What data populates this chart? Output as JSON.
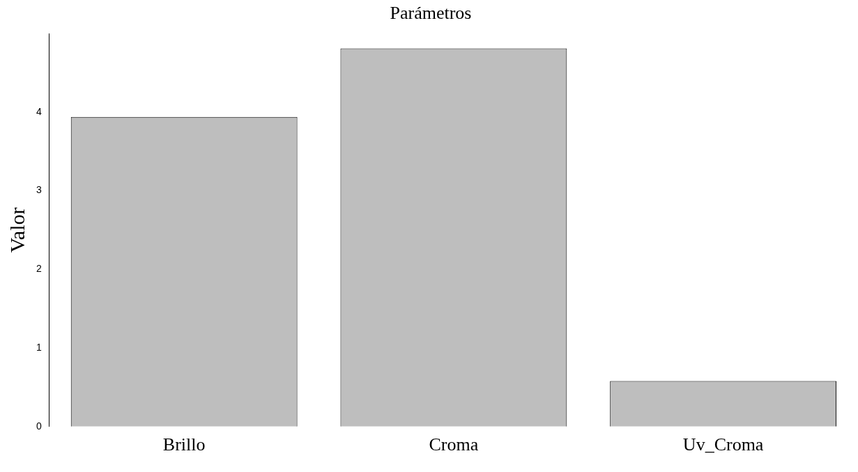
{
  "chart_data": {
    "type": "bar",
    "title": "Parámetros",
    "ylabel": "Valor",
    "categories": [
      "Brillo",
      "Croma",
      "Uv_Croma"
    ],
    "values": [
      3.94,
      4.81,
      0.58
    ],
    "color": "#bebebe",
    "ylim": [
      0,
      5
    ],
    "yticks": [
      0,
      1,
      2,
      3,
      4
    ],
    "grid": false,
    "legend": false
  }
}
